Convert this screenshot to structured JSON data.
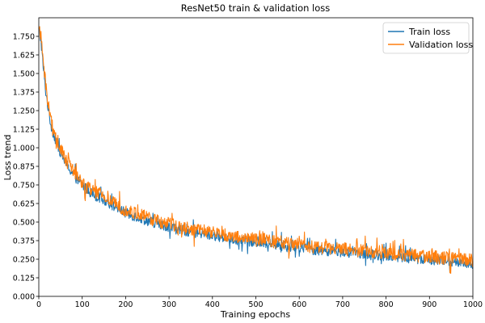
{
  "chart_data": {
    "type": "line",
    "title": "ResNet50 train & validation loss",
    "xlabel": "Training epochs",
    "ylabel": "Loss trend",
    "xlim": [
      0,
      1000
    ],
    "ylim": [
      0,
      1.875
    ],
    "xticks": [
      0,
      100,
      200,
      300,
      400,
      500,
      600,
      700,
      800,
      900,
      1000
    ],
    "xtick_labels": [
      "0",
      "100",
      "200",
      "300",
      "400",
      "500",
      "600",
      "700",
      "800",
      "900",
      "1000"
    ],
    "yticks": [
      0,
      0.125,
      0.25,
      0.375,
      0.5,
      0.625,
      0.75,
      0.875,
      1.0,
      1.125,
      1.25,
      1.375,
      1.5,
      1.625,
      1.75
    ],
    "ytick_labels": [
      "0.000",
      "0.125",
      "0.250",
      "0.375",
      "0.500",
      "0.625",
      "0.750",
      "0.875",
      "1.000",
      "1.125",
      "1.250",
      "1.375",
      "1.500",
      "1.625",
      "1.750"
    ],
    "grid": false,
    "legend_position": "top-right",
    "series": [
      {
        "name": "Train loss",
        "color": "#1f77b4",
        "x": [
          0,
          5,
          10,
          15,
          20,
          25,
          30,
          40,
          50,
          60,
          70,
          80,
          90,
          100,
          110,
          120,
          130,
          140,
          150,
          160,
          170,
          180,
          190,
          200,
          220,
          240,
          260,
          280,
          300,
          320,
          340,
          360,
          380,
          400,
          420,
          440,
          460,
          480,
          500,
          520,
          540,
          560,
          580,
          600,
          620,
          640,
          660,
          680,
          700,
          720,
          740,
          760,
          780,
          800,
          820,
          840,
          860,
          880,
          900,
          920,
          940,
          960,
          980,
          1000
        ],
        "y": [
          1.8,
          1.72,
          1.55,
          1.4,
          1.3,
          1.2,
          1.13,
          1.04,
          0.97,
          0.91,
          0.86,
          0.82,
          0.78,
          0.75,
          0.72,
          0.7,
          0.68,
          0.66,
          0.65,
          0.63,
          0.61,
          0.6,
          0.58,
          0.56,
          0.54,
          0.52,
          0.5,
          0.48,
          0.47,
          0.45,
          0.44,
          0.43,
          0.42,
          0.41,
          0.4,
          0.39,
          0.38,
          0.37,
          0.36,
          0.36,
          0.35,
          0.34,
          0.33,
          0.33,
          0.32,
          0.31,
          0.31,
          0.3,
          0.3,
          0.29,
          0.29,
          0.28,
          0.28,
          0.27,
          0.27,
          0.26,
          0.26,
          0.25,
          0.25,
          0.24,
          0.24,
          0.23,
          0.23,
          0.22
        ],
        "noise": 0.035
      },
      {
        "name": "Validation loss",
        "color": "#ff7f0e",
        "x": [
          0,
          5,
          10,
          15,
          20,
          25,
          30,
          40,
          50,
          60,
          70,
          80,
          90,
          100,
          110,
          120,
          130,
          140,
          150,
          160,
          170,
          180,
          190,
          200,
          220,
          240,
          260,
          280,
          300,
          320,
          340,
          360,
          380,
          400,
          420,
          440,
          460,
          480,
          500,
          520,
          540,
          560,
          580,
          600,
          620,
          640,
          660,
          680,
          700,
          720,
          740,
          760,
          780,
          800,
          820,
          840,
          860,
          880,
          900,
          920,
          940,
          960,
          980,
          1000
        ],
        "y": [
          1.8,
          1.74,
          1.6,
          1.45,
          1.33,
          1.24,
          1.16,
          1.06,
          0.99,
          0.93,
          0.88,
          0.84,
          0.8,
          0.77,
          0.74,
          0.72,
          0.7,
          0.69,
          0.67,
          0.65,
          0.63,
          0.62,
          0.6,
          0.58,
          0.56,
          0.54,
          0.52,
          0.5,
          0.49,
          0.47,
          0.46,
          0.45,
          0.44,
          0.43,
          0.42,
          0.41,
          0.4,
          0.39,
          0.38,
          0.38,
          0.37,
          0.36,
          0.35,
          0.35,
          0.34,
          0.33,
          0.33,
          0.32,
          0.32,
          0.31,
          0.31,
          0.3,
          0.3,
          0.29,
          0.29,
          0.28,
          0.28,
          0.27,
          0.27,
          0.26,
          0.26,
          0.25,
          0.25,
          0.24
        ],
        "noise": 0.045
      }
    ]
  }
}
